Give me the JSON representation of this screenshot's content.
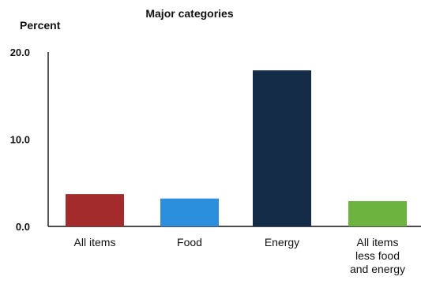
{
  "chart_data": {
    "type": "bar",
    "title": "Major categories",
    "ylabel": "Percent",
    "xlabel": "",
    "categories": [
      [
        "All items"
      ],
      [
        "Food"
      ],
      [
        "Energy"
      ],
      [
        "All items",
        "less food",
        "and energy"
      ]
    ],
    "values": [
      3.7,
      3.2,
      17.9,
      2.9
    ],
    "colors": [
      "#a32b2b",
      "#2b8fde",
      "#142c47",
      "#6db33f"
    ],
    "ylim": [
      0,
      20
    ],
    "yticks": [
      "0.0",
      "10.0",
      "20.0"
    ],
    "grid": false,
    "legend": "none"
  }
}
